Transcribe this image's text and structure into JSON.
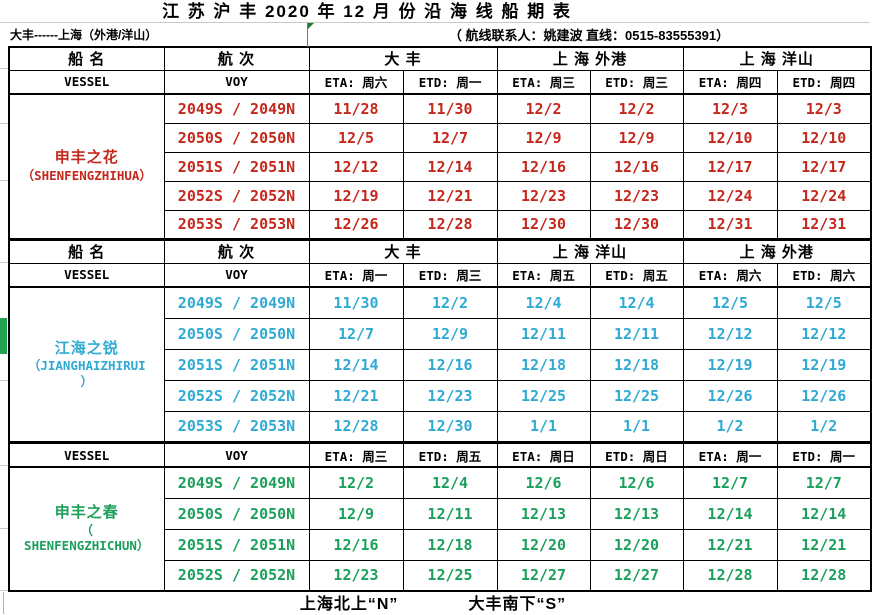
{
  "title": "江 苏 沪 丰 2020 年 12 月 份 沿 海 线 船 期 表",
  "route": "大丰------上海（外港/洋山）",
  "contact": "（ 航线联系人：姚建波  直线：0515-83555391）",
  "labels": {
    "vessel_cn": "船  名",
    "voy_cn": "航  次",
    "vessel_en": "VESSEL",
    "voy_en": "VOY"
  },
  "colors": {
    "section1_red": "#c4281c",
    "section2_cyan": "#2faad3",
    "section3_green": "#1ba05b",
    "gutter_marker_green": "#21a352",
    "corner_marker_green": "#1f7a2e"
  },
  "sections": [
    {
      "ports": [
        "大  丰",
        "上 海 外港",
        "上 海 洋山"
      ],
      "schedule_header": [
        "ETA: 周六",
        "ETD: 周一",
        "ETA: 周三",
        "ETD: 周三",
        "ETA: 周四",
        "ETD: 周四"
      ],
      "vessel": {
        "name_lines": [
          "申丰之花",
          "（SHENFENGZHIHUA）"
        ],
        "color": "#c4281c"
      },
      "rows": [
        {
          "voy": "2049S / 2049N",
          "dates": [
            "11/28",
            "11/30",
            "12/2",
            "12/2",
            "12/3",
            "12/3"
          ]
        },
        {
          "voy": "2050S / 2050N",
          "dates": [
            "12/5",
            "12/7",
            "12/9",
            "12/9",
            "12/10",
            "12/10"
          ]
        },
        {
          "voy": "2051S / 2051N",
          "dates": [
            "12/12",
            "12/14",
            "12/16",
            "12/16",
            "12/17",
            "12/17"
          ]
        },
        {
          "voy": "2052S / 2052N",
          "dates": [
            "12/19",
            "12/21",
            "12/23",
            "12/23",
            "12/24",
            "12/24"
          ]
        },
        {
          "voy": "2053S / 2053N",
          "dates": [
            "12/26",
            "12/28",
            "12/30",
            "12/30",
            "12/31",
            "12/31"
          ]
        }
      ]
    },
    {
      "ports": [
        "大  丰",
        "上 海 洋山",
        "上 海 外港"
      ],
      "schedule_header": [
        "ETA: 周一",
        "ETD: 周三",
        "ETA: 周五",
        "ETD: 周五",
        "ETA: 周六",
        "ETD: 周六"
      ],
      "vessel": {
        "name_lines": [
          "江海之锐",
          "（JIANGHAIZHIRUI",
          "）"
        ],
        "color": "#2faad3"
      },
      "rows": [
        {
          "voy": "2049S / 2049N",
          "dates": [
            "11/30",
            "12/2",
            "12/4",
            "12/4",
            "12/5",
            "12/5"
          ]
        },
        {
          "voy": "2050S / 2050N",
          "dates": [
            "12/7",
            "12/9",
            "12/11",
            "12/11",
            "12/12",
            "12/12"
          ]
        },
        {
          "voy": "2051S / 2051N",
          "dates": [
            "12/14",
            "12/16",
            "12/18",
            "12/18",
            "12/19",
            "12/19"
          ]
        },
        {
          "voy": "2052S / 2052N",
          "dates": [
            "12/21",
            "12/23",
            "12/25",
            "12/25",
            "12/26",
            "12/26"
          ]
        },
        {
          "voy": "2053S / 2053N",
          "dates": [
            "12/28",
            "12/30",
            "1/1",
            "1/1",
            "1/2",
            "1/2"
          ]
        }
      ]
    },
    {
      "ports": null,
      "schedule_header": [
        "ETA: 周三",
        "ETD: 周五",
        "ETA: 周日",
        "ETD: 周日",
        "ETA: 周一",
        "ETD: 周一"
      ],
      "vessel": {
        "name_lines": [
          "申丰之春",
          "（",
          "SHENFENGZHICHUN）"
        ],
        "color": "#1ba05b"
      },
      "rows": [
        {
          "voy": "2049S / 2049N",
          "dates": [
            "12/2",
            "12/4",
            "12/6",
            "12/6",
            "12/7",
            "12/7"
          ]
        },
        {
          "voy": "2050S / 2050N",
          "dates": [
            "12/9",
            "12/11",
            "12/13",
            "12/13",
            "12/14",
            "12/14"
          ]
        },
        {
          "voy": "2051S / 2051N",
          "dates": [
            "12/16",
            "12/18",
            "12/20",
            "12/20",
            "12/21",
            "12/21"
          ]
        },
        {
          "voy": "2052S / 2052N",
          "dates": [
            "12/23",
            "12/25",
            "12/27",
            "12/27",
            "12/28",
            "12/28"
          ]
        }
      ]
    }
  ],
  "footer": {
    "north": "上海北上“N”",
    "south": "大丰南下“S”"
  }
}
